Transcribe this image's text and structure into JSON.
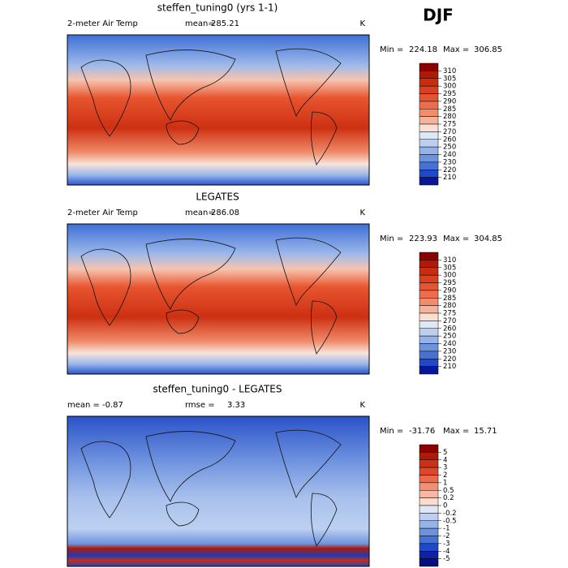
{
  "season": "DJF",
  "panels": [
    {
      "title": "steffen_tuning0 (yrs 1-1)",
      "variable": "2-meter Air Temp",
      "mean_label": "mean=",
      "mean": 285.21,
      "units": "K",
      "min_label": "Min =",
      "min": 224.18,
      "max_label": "Max =",
      "max": 306.85,
      "colorbar": {
        "levels": [
          310,
          305,
          300,
          295,
          290,
          285,
          280,
          275,
          270,
          260,
          250,
          240,
          230,
          220,
          210
        ],
        "colors": [
          "#8b0000",
          "#b01a05",
          "#c92d10",
          "#da4020",
          "#e55532",
          "#ec6c4b",
          "#f28c6d",
          "#f7b39a",
          "#fbdfd0",
          "#dfe8f6",
          "#bccff0",
          "#95b3e8",
          "#6d93df",
          "#4672d6",
          "#2049c8",
          "#07179a"
        ]
      }
    },
    {
      "title": "LEGATES",
      "variable": "2-meter Air Temp",
      "mean_label": "mean=",
      "mean": 286.08,
      "units": "K",
      "min_label": "Min =",
      "min": 223.93,
      "max_label": "Max =",
      "max": 304.85,
      "colorbar": {
        "levels": [
          310,
          305,
          300,
          295,
          290,
          285,
          280,
          275,
          270,
          260,
          250,
          240,
          230,
          220,
          210
        ],
        "colors": [
          "#8b0000",
          "#b01a05",
          "#c92d10",
          "#da4020",
          "#e55532",
          "#ec6c4b",
          "#f28c6d",
          "#f7b39a",
          "#fbdfd0",
          "#dfe8f6",
          "#bccff0",
          "#95b3e8",
          "#6d93df",
          "#4672d6",
          "#2049c8",
          "#07179a"
        ]
      }
    },
    {
      "title": "steffen_tuning0 - LEGATES",
      "mean_label": "mean =",
      "mean": -0.87,
      "rmse_label": "rmse =",
      "rmse": 3.33,
      "units": "K",
      "min_label": "Min =",
      "min": -31.76,
      "max_label": "Max =",
      "max": 15.71,
      "colorbar": {
        "levels": [
          5,
          4,
          3,
          2,
          1,
          0.5,
          0.2,
          0,
          -0.2,
          -0.5,
          -1,
          -2,
          -3,
          -4,
          -5
        ],
        "colors": [
          "#8b0000",
          "#b01a05",
          "#cc3016",
          "#e0472a",
          "#ec6a4a",
          "#f48f72",
          "#f9b6a0",
          "#fcdcce",
          "#dde7f6",
          "#bccff0",
          "#95b3e8",
          "#6d93df",
          "#4672d6",
          "#2049c8",
          "#0d22a8",
          "#05107e"
        ]
      }
    }
  ]
}
